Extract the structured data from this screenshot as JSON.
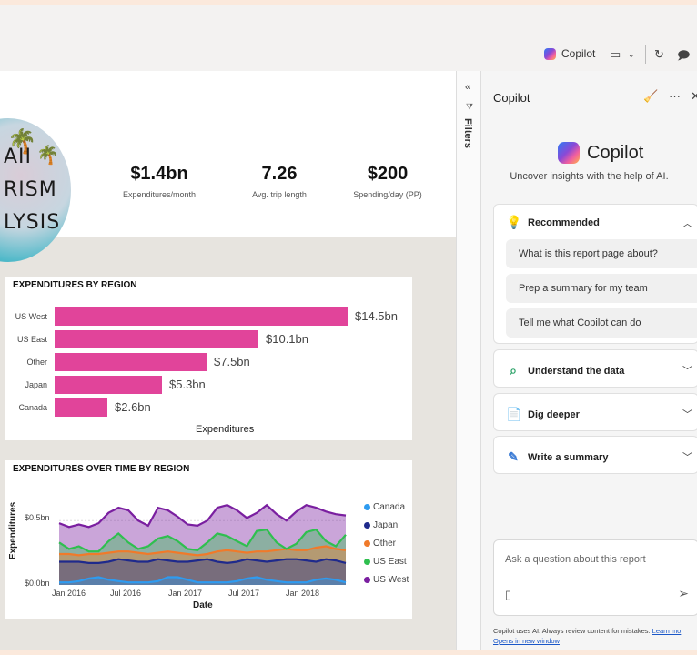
{
  "toolbar": {
    "copilot_label": "Copilot",
    "icons": [
      "copilot-logo-icon",
      "view-icon",
      "chevron-down-icon",
      "refresh-icon",
      "comment-icon"
    ]
  },
  "report": {
    "hero_lines": [
      "AII",
      "RISM",
      "LYSIS"
    ],
    "kpis": [
      {
        "value": "$1.4bn",
        "label": "Expenditures/month"
      },
      {
        "value": "7.26",
        "label": "Avg. trip length"
      },
      {
        "value": "$200",
        "label": "Spending/day (PP)"
      }
    ]
  },
  "bar_chart": {
    "title": "EXPENDITURES BY REGION",
    "xlabel": "Expenditures",
    "categories": [
      "US West",
      "US East",
      "Other",
      "Japan",
      "Canada"
    ],
    "value_labels": [
      "$14.5bn",
      "$10.1bn",
      "$7.5bn",
      "$5.3bn",
      "$2.6bn"
    ]
  },
  "area_chart": {
    "title": "EXPENDITURES OVER TIME BY REGION",
    "ylabel": "Expenditures",
    "xlabel": "Date",
    "yticks": [
      "$0.5bn",
      "$0.0bn"
    ],
    "xticks": [
      "Jan 2016",
      "Jul 2016",
      "Jan 2017",
      "Jul 2017",
      "Jan 2018"
    ]
  },
  "colors": {
    "accent_pink": "#e1449a",
    "canada": "#2e9bf0",
    "japan": "#1f2a8c",
    "other": "#f07a2a",
    "us_east": "#2fbf4f",
    "us_west": "#7a1fa0"
  },
  "chart_data": [
    {
      "type": "bar",
      "title": "EXPENDITURES BY REGION",
      "xlabel": "Expenditures",
      "ylabel": "",
      "categories": [
        "US West",
        "US East",
        "Other",
        "Japan",
        "Canada"
      ],
      "values": [
        14.5,
        10.1,
        7.5,
        5.3,
        2.6
      ],
      "xlim": [
        0,
        14.5
      ]
    },
    {
      "type": "area",
      "title": "EXPENDITURES OVER TIME BY REGION",
      "xlabel": "Date",
      "ylabel": "Expenditures",
      "ylim": [
        0,
        0.65
      ],
      "x": [
        "2015-12",
        "2016-01",
        "2016-02",
        "2016-03",
        "2016-04",
        "2016-05",
        "2016-06",
        "2016-07",
        "2016-08",
        "2016-09",
        "2016-10",
        "2016-11",
        "2016-12",
        "2017-01",
        "2017-02",
        "2017-03",
        "2017-04",
        "2017-05",
        "2017-06",
        "2017-07",
        "2017-08",
        "2017-09",
        "2017-10",
        "2017-11",
        "2017-12",
        "2018-01",
        "2018-02",
        "2018-03",
        "2018-04",
        "2018-05"
      ],
      "series": [
        {
          "name": "Canada",
          "values": [
            0.02,
            0.02,
            0.03,
            0.05,
            0.06,
            0.04,
            0.03,
            0.02,
            0.02,
            0.02,
            0.03,
            0.06,
            0.06,
            0.04,
            0.02,
            0.02,
            0.02,
            0.02,
            0.03,
            0.05,
            0.06,
            0.04,
            0.03,
            0.02,
            0.02,
            0.02,
            0.04,
            0.05,
            0.04,
            0.02
          ]
        },
        {
          "name": "Japan",
          "values": [
            0.18,
            0.18,
            0.18,
            0.17,
            0.17,
            0.18,
            0.2,
            0.19,
            0.18,
            0.18,
            0.2,
            0.19,
            0.18,
            0.18,
            0.19,
            0.2,
            0.18,
            0.17,
            0.18,
            0.2,
            0.19,
            0.18,
            0.19,
            0.2,
            0.2,
            0.19,
            0.18,
            0.2,
            0.19,
            0.17
          ]
        },
        {
          "name": "Other",
          "values": [
            0.24,
            0.24,
            0.23,
            0.24,
            0.24,
            0.25,
            0.26,
            0.26,
            0.25,
            0.24,
            0.25,
            0.26,
            0.25,
            0.24,
            0.23,
            0.24,
            0.26,
            0.27,
            0.26,
            0.25,
            0.26,
            0.26,
            0.27,
            0.28,
            0.27,
            0.27,
            0.29,
            0.3,
            0.28,
            0.27
          ]
        },
        {
          "name": "US East",
          "values": [
            0.33,
            0.28,
            0.3,
            0.26,
            0.26,
            0.34,
            0.4,
            0.33,
            0.28,
            0.3,
            0.36,
            0.38,
            0.34,
            0.28,
            0.27,
            0.33,
            0.4,
            0.38,
            0.34,
            0.3,
            0.42,
            0.43,
            0.33,
            0.28,
            0.32,
            0.41,
            0.43,
            0.34,
            0.3,
            0.39
          ]
        },
        {
          "name": "US West",
          "values": [
            0.48,
            0.45,
            0.47,
            0.45,
            0.48,
            0.56,
            0.6,
            0.58,
            0.5,
            0.46,
            0.6,
            0.58,
            0.53,
            0.47,
            0.46,
            0.5,
            0.6,
            0.62,
            0.58,
            0.52,
            0.56,
            0.62,
            0.55,
            0.5,
            0.57,
            0.62,
            0.6,
            0.57,
            0.55,
            0.54
          ]
        }
      ]
    }
  ],
  "filters": {
    "label": "Filters"
  },
  "copilot": {
    "pane_title": "Copilot",
    "hero_title": "Copilot",
    "subtitle": "Uncover insights with the help of AI.",
    "sections": {
      "recommended": "Recommended",
      "understand": "Understand the data",
      "dig": "Dig deeper",
      "summary": "Write a summary"
    },
    "prompts": [
      "What is this report page about?",
      "Prep a summary for my team",
      "Tell me what Copilot can do"
    ],
    "input_placeholder": "Ask a question about this report",
    "disclaimer": "Copilot uses AI. Always review content for mistakes.",
    "learn_more": "Learn mo",
    "opens_new": "Opens in new window"
  }
}
